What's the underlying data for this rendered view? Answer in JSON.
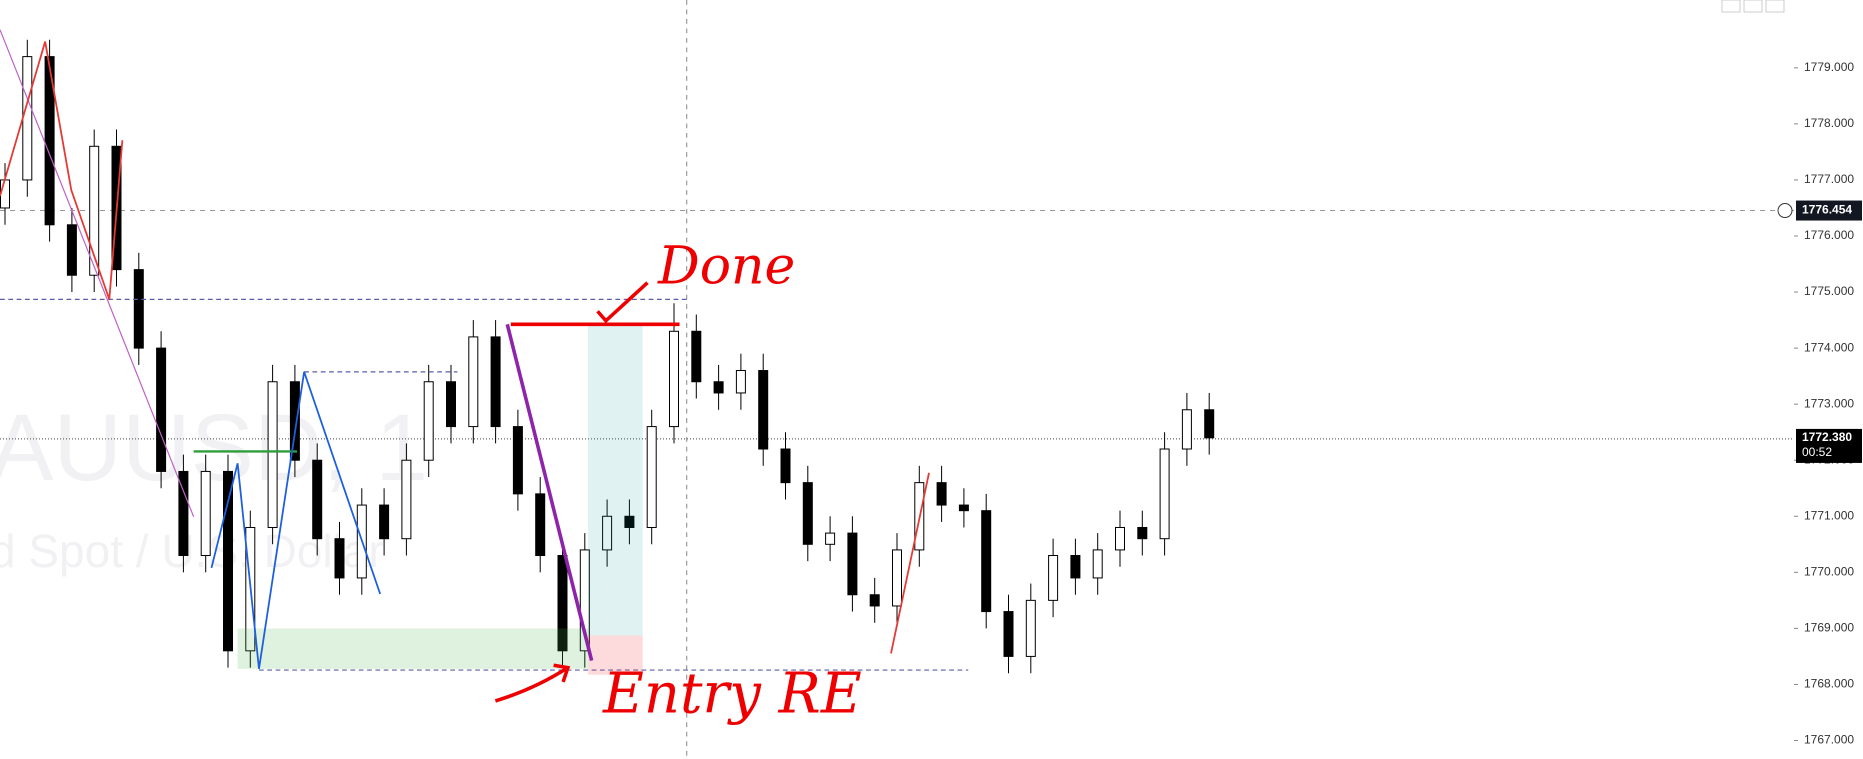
{
  "chart_data": {
    "type": "candlestick",
    "watermark": "AUUSD, 1",
    "watermark_sub": "d Spot / U.S. Dollar",
    "annotations": [
      "Done",
      "Entry RE"
    ],
    "open": [
      1776.5,
      1777.0,
      1779.2,
      1776.2,
      1775.3,
      1777.6,
      1775.4,
      1774.0,
      1771.8,
      1770.3,
      1771.8,
      1768.6,
      1770.8,
      1773.4,
      1772.0,
      1770.6,
      1769.9,
      1771.2,
      1770.6,
      1772.0,
      1773.4,
      1772.6,
      1774.2,
      1772.6,
      1771.4,
      1770.3,
      1768.6,
      1770.4,
      1771.0,
      1770.8,
      1772.6,
      1774.3,
      1773.4,
      1773.2,
      1773.6,
      1772.2,
      1771.6,
      1770.5,
      1770.7,
      1769.6,
      1769.4,
      1770.4,
      1771.6,
      1771.2,
      1771.1,
      1769.3,
      1768.5,
      1769.5,
      1770.3,
      1769.9,
      1770.4,
      1770.8,
      1770.6,
      1772.2,
      1772.9
    ],
    "high": [
      1777.3,
      1779.5,
      1779.5,
      1776.5,
      1777.9,
      1777.9,
      1775.7,
      1774.3,
      1772.1,
      1772.1,
      1772.1,
      1771.1,
      1773.7,
      1773.7,
      1772.3,
      1770.9,
      1771.5,
      1771.5,
      1772.3,
      1773.7,
      1773.7,
      1774.5,
      1774.5,
      1772.9,
      1771.7,
      1770.6,
      1770.7,
      1771.3,
      1771.3,
      1772.9,
      1774.8,
      1774.6,
      1773.7,
      1773.9,
      1773.9,
      1772.5,
      1771.9,
      1771.0,
      1771.0,
      1769.9,
      1770.7,
      1771.9,
      1771.9,
      1771.5,
      1771.4,
      1769.6,
      1769.8,
      1770.6,
      1770.6,
      1770.7,
      1771.1,
      1771.1,
      1772.5,
      1773.2,
      1773.2
    ],
    "low": [
      1776.2,
      1776.7,
      1775.9,
      1775.0,
      1775.0,
      1775.1,
      1773.7,
      1771.5,
      1770.0,
      1770.0,
      1768.3,
      1768.3,
      1770.5,
      1771.7,
      1770.3,
      1769.6,
      1769.6,
      1770.3,
      1770.3,
      1771.7,
      1772.3,
      1772.3,
      1772.3,
      1771.1,
      1770.0,
      1768.3,
      1768.3,
      1770.1,
      1770.5,
      1770.5,
      1772.3,
      1773.1,
      1772.9,
      1772.9,
      1771.9,
      1771.3,
      1770.2,
      1770.2,
      1769.3,
      1769.1,
      1769.1,
      1770.1,
      1770.9,
      1770.8,
      1769.0,
      1768.2,
      1768.2,
      1769.2,
      1769.6,
      1769.6,
      1770.1,
      1770.3,
      1770.3,
      1771.9,
      1772.1
    ],
    "close": [
      1777.0,
      1779.2,
      1776.2,
      1775.3,
      1777.6,
      1775.4,
      1774.0,
      1771.8,
      1770.3,
      1771.8,
      1768.6,
      1770.8,
      1773.4,
      1772.0,
      1770.6,
      1769.9,
      1771.2,
      1770.6,
      1772.0,
      1773.4,
      1772.6,
      1774.2,
      1772.6,
      1771.4,
      1770.3,
      1768.6,
      1770.4,
      1771.0,
      1770.8,
      1772.6,
      1774.3,
      1773.4,
      1773.2,
      1773.6,
      1772.2,
      1771.6,
      1770.5,
      1770.7,
      1769.6,
      1769.4,
      1770.4,
      1771.6,
      1771.2,
      1771.1,
      1769.3,
      1768.5,
      1769.5,
      1770.3,
      1769.9,
      1770.4,
      1770.8,
      1770.6,
      1772.2,
      1772.9,
      1772.4
    ],
    "ylim": [
      1766.67,
      1780.21
    ],
    "yticks": [
      {
        "value": 1767,
        "label": "1767.000"
      },
      {
        "value": 1768,
        "label": "1768.000"
      },
      {
        "value": 1769,
        "label": "1769.000"
      },
      {
        "value": 1770,
        "label": "1770.000"
      },
      {
        "value": 1771,
        "label": "1771.000"
      },
      {
        "value": 1772,
        "label": "1772.000"
      },
      {
        "value": 1773,
        "label": "1773.000"
      },
      {
        "value": 1774,
        "label": "1774.000"
      },
      {
        "value": 1775,
        "label": "1775.000"
      },
      {
        "value": 1776,
        "label": "1776.000"
      },
      {
        "value": 1777,
        "label": "1777.000"
      },
      {
        "value": 1778,
        "label": "1778.000"
      },
      {
        "value": 1779,
        "label": "1779.000"
      }
    ],
    "crosshair_price": 1776.454,
    "last_price": {
      "value": 1772.38,
      "label": "1772.380"
    },
    "countdown": "00:52"
  }
}
